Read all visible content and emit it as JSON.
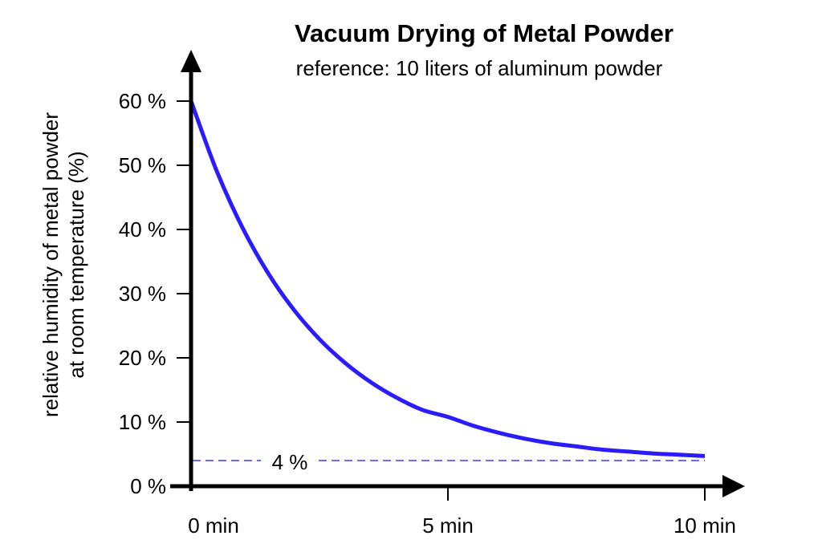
{
  "chart_data": {
    "type": "line",
    "title": "Vacuum Drying of Metal Powder",
    "subtitle": "reference: 10 liters of aluminum powder",
    "ylabel_lines": [
      "relative humidity of metal powder",
      "at room temperature (%)"
    ],
    "xlabel": "",
    "xlim": [
      0,
      10
    ],
    "ylim": [
      0,
      60
    ],
    "x_ticks": [
      0,
      5,
      10
    ],
    "x_tick_labels": [
      "0 min",
      "5 min",
      "10 min"
    ],
    "y_ticks": [
      0,
      10,
      20,
      30,
      40,
      50,
      60
    ],
    "y_tick_labels": [
      "0 %",
      "10 %",
      "20 %",
      "30 %",
      "40 %",
      "50 %",
      "60 %"
    ],
    "grid": false,
    "series": [
      {
        "color": "#2b1bff",
        "x": [
          0,
          0.5,
          1,
          1.5,
          2,
          2.5,
          3,
          3.5,
          4,
          4.5,
          5,
          5.5,
          6,
          6.5,
          7,
          7.5,
          8,
          8.5,
          9,
          9.5,
          10
        ],
        "y": [
          60,
          49.1,
          40.3,
          33.2,
          27.5,
          22.9,
          19.2,
          16.2,
          13.8,
          11.9,
          10.8,
          9.4,
          8.3,
          7.4,
          6.7,
          6.2,
          5.7,
          5.4,
          5.1,
          4.9,
          4.7
        ]
      }
    ],
    "reference_line": {
      "y": 4,
      "label": "4 %",
      "color": "#3a3aff",
      "style": "dashed"
    }
  }
}
